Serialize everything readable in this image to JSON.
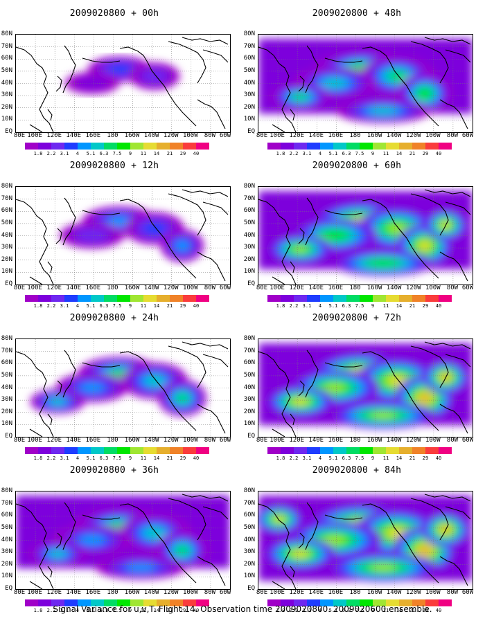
{
  "panels": [
    {
      "title": "2009020800 + 00h",
      "intensity": 0.1
    },
    {
      "title": "2009020800 + 48h",
      "intensity": 0.62
    },
    {
      "title": "2009020800 + 12h",
      "intensity": 0.3
    },
    {
      "title": "2009020800 + 60h",
      "intensity": 0.72
    },
    {
      "title": "2009020800 + 24h",
      "intensity": 0.45
    },
    {
      "title": "2009020800 + 72h",
      "intensity": 0.82
    },
    {
      "title": "2009020800 + 36h",
      "intensity": 0.55
    },
    {
      "title": "2009020800 + 84h",
      "intensity": 0.92
    }
  ],
  "lat_labels": [
    "80N",
    "70N",
    "60N",
    "50N",
    "40N",
    "30N",
    "20N",
    "10N",
    "EQ"
  ],
  "lon_labels": [
    "80E",
    "100E",
    "120E",
    "140E",
    "160E",
    "180",
    "160W",
    "140W",
    "120W",
    "100W",
    "80W",
    "60W"
  ],
  "colorbar": {
    "labels": [
      "1.8",
      "2.2",
      "3.1",
      "4",
      "5.1",
      "6.3",
      "7.5",
      "9",
      "11",
      "14",
      "21",
      "29",
      "40"
    ],
    "colors": [
      "#a000c8",
      "#7d00dc",
      "#6e28f0",
      "#1e3cff",
      "#0096ff",
      "#00c8c8",
      "#00dc64",
      "#00e600",
      "#a0e632",
      "#e6dc32",
      "#e6af2d",
      "#f08228",
      "#fa3c3c",
      "#f00082"
    ]
  },
  "footer": "Signal Variance for u,v,T. Flight 14. Observation time 2009020800. 2009020600 ensemble."
}
